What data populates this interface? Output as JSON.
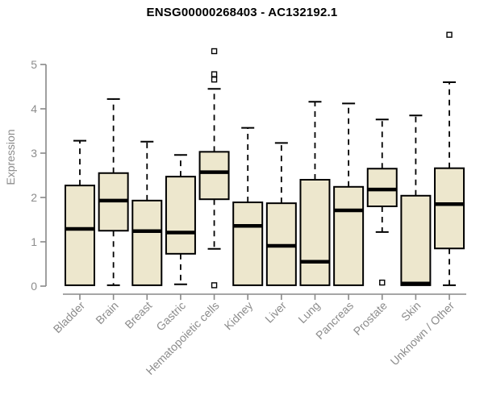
{
  "colors": {
    "background": "#FFFFFF",
    "box_fill": "#EDE7CD",
    "box_stroke": "#000000",
    "median": "#000000",
    "whisker": "#000000",
    "outlier_fill": "#FFFFFF",
    "axis": "#898989",
    "text": "#8C8C8C",
    "title_text": "#000000"
  },
  "chart_data": {
    "type": "boxplot",
    "title": "ENSG00000268403 - AC132192.1",
    "xlabel": "",
    "ylabel": "Expression",
    "ylim": [
      0,
      5
    ],
    "yticks": [
      0,
      1,
      2,
      3,
      4,
      5
    ],
    "grid": false,
    "categories": [
      "Bladder",
      "Brain",
      "Breast",
      "Gastric",
      "Hematopoietic cells",
      "Kidney",
      "Liver",
      "Lung",
      "Pancreas",
      "Prostate",
      "Skin",
      "Unknown / Other"
    ],
    "series": [
      {
        "name": "Bladder",
        "low": 0.02,
        "q1": 0.02,
        "median": 1.29,
        "q3": 2.27,
        "high": 3.28,
        "outliers": []
      },
      {
        "name": "Brain",
        "low": 0.02,
        "q1": 1.25,
        "median": 1.93,
        "q3": 2.55,
        "high": 4.22,
        "outliers": []
      },
      {
        "name": "Breast",
        "low": 0.02,
        "q1": 0.02,
        "median": 1.24,
        "q3": 1.93,
        "high": 3.26,
        "outliers": []
      },
      {
        "name": "Gastric",
        "low": 0.04,
        "q1": 0.73,
        "median": 1.21,
        "q3": 2.47,
        "high": 2.96,
        "outliers": []
      },
      {
        "name": "Hematopoietic cells",
        "low": 0.84,
        "q1": 1.96,
        "median": 2.57,
        "q3": 3.03,
        "high": 4.45,
        "outliers": [
          5.3,
          4.78,
          4.66,
          0.02
        ]
      },
      {
        "name": "Kidney",
        "low": 0.02,
        "q1": 0.02,
        "median": 1.36,
        "q3": 1.89,
        "high": 3.57,
        "outliers": []
      },
      {
        "name": "Liver",
        "low": 0.02,
        "q1": 0.02,
        "median": 0.91,
        "q3": 1.87,
        "high": 3.23,
        "outliers": []
      },
      {
        "name": "Lung",
        "low": 0.02,
        "q1": 0.02,
        "median": 0.55,
        "q3": 2.4,
        "high": 4.16,
        "outliers": []
      },
      {
        "name": "Pancreas",
        "low": 0.02,
        "q1": 0.02,
        "median": 1.71,
        "q3": 2.24,
        "high": 4.12,
        "outliers": []
      },
      {
        "name": "Prostate",
        "low": 1.22,
        "q1": 1.8,
        "median": 2.18,
        "q3": 2.65,
        "high": 3.76,
        "outliers": [
          0.08
        ]
      },
      {
        "name": "Skin",
        "low": 0.02,
        "q1": 0.02,
        "median": 0.06,
        "q3": 2.04,
        "high": 3.85,
        "outliers": []
      },
      {
        "name": "Unknown / Other",
        "low": 0.02,
        "q1": 0.85,
        "median": 1.85,
        "q3": 2.66,
        "high": 4.6,
        "outliers": [
          5.67
        ]
      }
    ]
  }
}
